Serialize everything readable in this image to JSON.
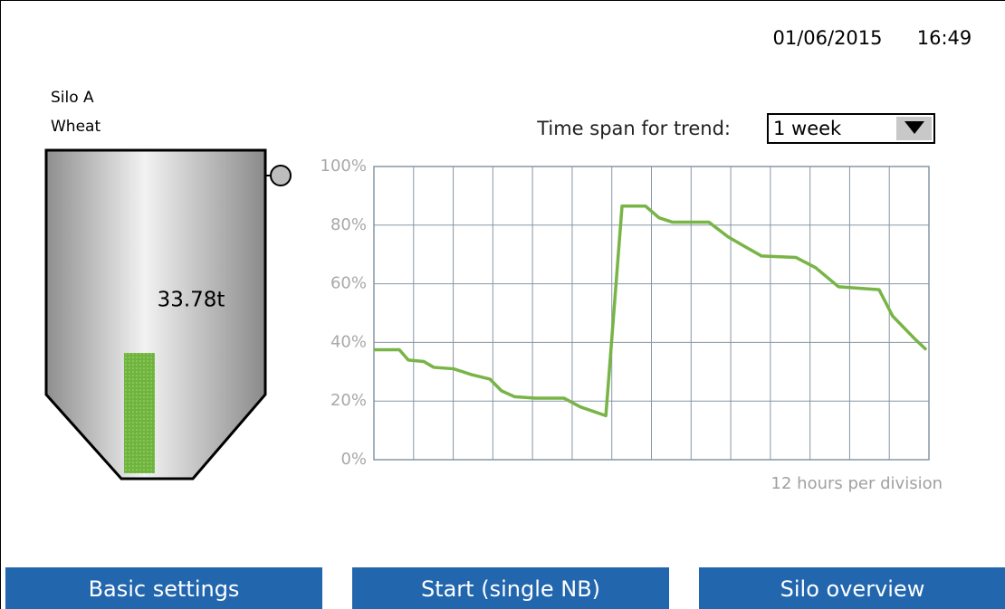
{
  "header": {
    "date": "01/06/2015",
    "time": "16:49"
  },
  "silo": {
    "name": "Silo A",
    "product": "Wheat",
    "weight": "33.78t"
  },
  "trend_control": {
    "label": "Time span for trend:",
    "selected": "1 week"
  },
  "chart_data": {
    "type": "line",
    "x": [
      0,
      7.7,
      10.4,
      15.1,
      18.1,
      24.1,
      29.6,
      35.1,
      38.6,
      42.5,
      48.8,
      57.5,
      62.5,
      70.2,
      75.1,
      82.2,
      86.3,
      90.4,
      101.4,
      107.2,
      112.6,
      117.3,
      127.7,
      133.7,
      140.6,
      152.9,
      157.0,
      163.9,
      167.2
    ],
    "values": [
      37.5,
      37.5,
      34,
      33.5,
      31.5,
      31,
      29,
      27.5,
      23.5,
      21.5,
      21,
      21,
      18,
      15,
      86.5,
      86.5,
      82.5,
      81,
      81,
      76,
      72.5,
      69.5,
      69,
      65.5,
      59,
      58,
      49,
      41,
      37.5
    ],
    "color": "#78b446",
    "xlim": [
      0,
      168
    ],
    "xticks": [
      0,
      12,
      24,
      36,
      48,
      60,
      72,
      84,
      96,
      108,
      120,
      132,
      144,
      156,
      168
    ],
    "ylim": [
      0,
      100
    ],
    "yticks": [
      {
        "value": 0,
        "label": "0%"
      },
      {
        "value": 20,
        "label": "20%"
      },
      {
        "value": 40,
        "label": "40%"
      },
      {
        "value": 60,
        "label": "60%"
      },
      {
        "value": 80,
        "label": "80%"
      },
      {
        "value": 100,
        "label": "100%"
      }
    ],
    "grid": true,
    "annotation": "12 hours per division"
  },
  "buttons": [
    "Basic settings",
    "Start (single NB)",
    "Silo overview"
  ]
}
